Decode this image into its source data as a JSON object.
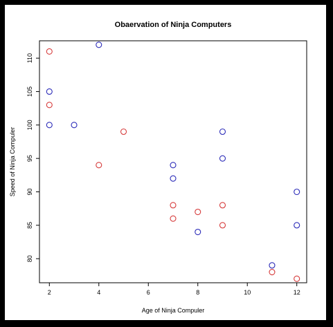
{
  "chart_data": {
    "type": "scatter",
    "title": "Obaervation of Ninja Computers",
    "xlabel": "Age of Ninja Compuler",
    "ylabel": "Speed of Ninja Compuler",
    "xlim": [
      1.6,
      12.4
    ],
    "ylim": [
      76.4,
      112.6
    ],
    "xticks": [
      2,
      4,
      6,
      8,
      10,
      12
    ],
    "yticks": [
      80,
      85,
      90,
      95,
      100,
      105,
      110
    ],
    "grid": false,
    "legend": "none",
    "series": [
      {
        "color": "#2a2ab8",
        "points": [
          [
            2,
            105
          ],
          [
            2,
            100
          ],
          [
            3,
            100
          ],
          [
            4,
            112
          ],
          [
            7,
            94
          ],
          [
            7,
            92
          ],
          [
            8,
            84
          ],
          [
            9,
            99
          ],
          [
            9,
            95
          ],
          [
            11,
            79
          ],
          [
            12,
            90
          ],
          [
            12,
            85
          ]
        ]
      },
      {
        "color": "#d63a3a",
        "points": [
          [
            2,
            111
          ],
          [
            2,
            103
          ],
          [
            4,
            94
          ],
          [
            5,
            99
          ],
          [
            7,
            88
          ],
          [
            7,
            86
          ],
          [
            8,
            87
          ],
          [
            9,
            88
          ],
          [
            9,
            85
          ],
          [
            11,
            78
          ],
          [
            12,
            77
          ]
        ]
      }
    ]
  }
}
